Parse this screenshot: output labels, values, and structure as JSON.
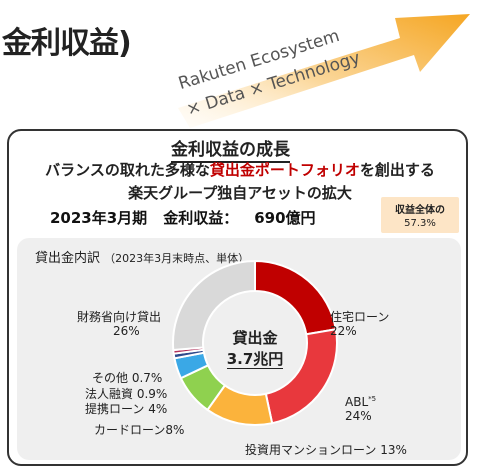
{
  "header": {
    "title": "金利収益)",
    "ecosystem_line1": "Rakuten  Ecosystem",
    "ecosystem_line2": "× Data × Technology"
  },
  "card": {
    "title": "金利収益の成長",
    "subtitle1_prefix": "バランスの取れた多様な",
    "subtitle1_highlight": "貸出金ポートフォリオ",
    "subtitle1_suffix": "を創出する",
    "subtitle2": "楽天グループ独自アセットの拡大",
    "period": "2023年3月期",
    "revenue_label": "金利収益：",
    "revenue_value": "690億円",
    "share_label": "収益全体の",
    "share_value": "57.3%"
  },
  "breakdown": {
    "title": "貸出金内訳",
    "note": "（2023年3月末時点、単体）",
    "center_line1": "貸出金",
    "center_line2": "3.7兆円"
  },
  "chart_data": {
    "type": "pie",
    "title": "貸出金内訳",
    "unit": "%",
    "slices": [
      {
        "label": "住宅ローン",
        "value": 22,
        "display": "22%",
        "color": "#c00000"
      },
      {
        "label": "ABL",
        "note": "*5",
        "value": 24,
        "display": "24%",
        "color": "#e8383d"
      },
      {
        "label": "投資用マンションローン",
        "value": 13,
        "display": "13%",
        "color": "#fbb33c"
      },
      {
        "label": "カードローン",
        "value": 8,
        "display": "8%",
        "color": "#8fd14f"
      },
      {
        "label": "提携ローン",
        "value": 4,
        "display": "4%",
        "color": "#3aa8e6"
      },
      {
        "label": "法人融資",
        "value": 0.9,
        "display": "0.9%",
        "color": "#2e4a8c"
      },
      {
        "label": "その他",
        "value": 0.7,
        "display": "0.7%",
        "color": "#b0325c"
      },
      {
        "label": "財務省向け貸出",
        "value": 26,
        "display": "26%",
        "color": "#d9d9d9"
      }
    ]
  },
  "colors": {
    "arrow": "#f7b94e",
    "accent_red": "#c00000",
    "share_bg": "#fde5c6",
    "panel_bg": "#efefef"
  }
}
